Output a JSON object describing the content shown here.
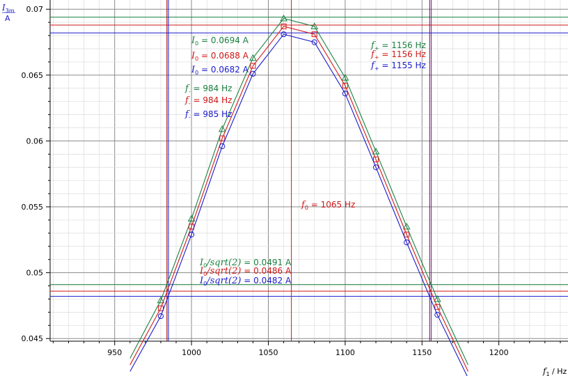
{
  "chart_data": {
    "type": "line",
    "x_axis": {
      "var": "f",
      "sub": "1",
      "unit": "Hz",
      "range": [
        908,
        1245
      ],
      "ticks": [
        950,
        1000,
        1050,
        1100,
        1150,
        1200
      ]
    },
    "y_axis": {
      "var": "I",
      "sub": "3m",
      "unit": "A",
      "range": [
        0.0448,
        0.0707
      ],
      "ticks": [
        0.045,
        0.05,
        0.055,
        0.06,
        0.065,
        0.07
      ],
      "tick_labels": [
        "0.045",
        "0.05",
        "0.055",
        "0.06",
        "0.065",
        "0.07"
      ]
    },
    "grid": true,
    "x": [
      960,
      980,
      1000,
      1020,
      1040,
      1060,
      1080,
      1100,
      1120,
      1140,
      1160,
      1180
    ],
    "series": [
      {
        "color": "#1a8040",
        "marker": "triangle",
        "values": [
          0.0435,
          0.0479,
          0.0541,
          0.0609,
          0.0663,
          0.0693,
          0.0687,
          0.0648,
          0.0592,
          0.0535,
          0.048,
          0.043
        ],
        "I0": "0.0694",
        "f_minus": "984",
        "f_plus": "1156",
        "Isqrt": "0.0491"
      },
      {
        "color": "#d01818",
        "marker": "square",
        "values": [
          0.043,
          0.0473,
          0.0535,
          0.0602,
          0.0657,
          0.0687,
          0.0681,
          0.0642,
          0.0586,
          0.0529,
          0.0474,
          0.0425
        ],
        "I0": "0.0688",
        "f_minus": "984",
        "f_plus": "1156",
        "Isqrt": "0.0486"
      },
      {
        "color": "#1a1acc",
        "marker": "circle",
        "values": [
          0.0425,
          0.0467,
          0.0529,
          0.0596,
          0.0651,
          0.0681,
          0.0675,
          0.0636,
          0.058,
          0.0523,
          0.0468,
          0.042
        ],
        "I0": "0.0682",
        "f_minus": "985",
        "f_plus": "1155",
        "Isqrt": "0.0482"
      }
    ],
    "f0": {
      "value": 1065,
      "text": "1065",
      "color": "#d01818"
    },
    "labels": {
      "f0_var": "f",
      "f0_sub": "0",
      "I0_var": "I",
      "I0_sub": "0",
      "fminus_var": "f",
      "fminus_sub": "-",
      "fplus_var": "f",
      "fplus_sub": "+",
      "sqrt_prefix": "I",
      "sqrt_sub": "0",
      "sqrt_suffix": "/sqrt(2)",
      "eq": "=",
      "unit_A": "A",
      "unit_Hz": "Hz"
    }
  }
}
